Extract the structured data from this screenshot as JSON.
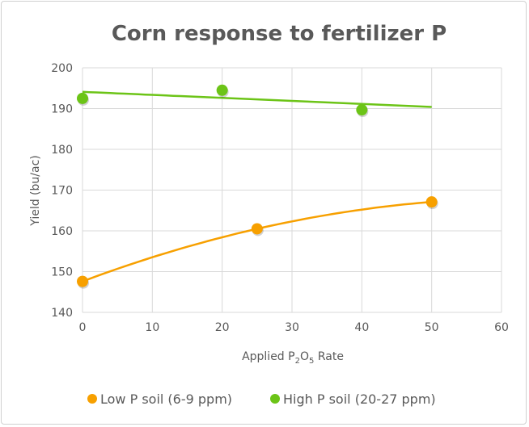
{
  "chart_data": {
    "type": "scatter",
    "title": "Corn response to fertilizer P",
    "xlabel": "Applied P2O5 Rate",
    "xlabel_parts": {
      "pre": "Applied P",
      "sub1": "2",
      "mid": "O",
      "sub2": "5",
      "post": " Rate"
    },
    "ylabel": "Yield (bu/ac)",
    "xlim": [
      0,
      60
    ],
    "ylim": [
      140,
      200
    ],
    "xticks": [
      "0",
      "10",
      "20",
      "30",
      "40",
      "50",
      "60"
    ],
    "yticks": [
      "140",
      "150",
      "160",
      "170",
      "180",
      "190",
      "200"
    ],
    "grid": true,
    "legend_position": "bottom",
    "series": [
      {
        "name": "Low P soil (6-9 ppm)",
        "color": "#F7A000",
        "x": [
          0,
          25,
          50
        ],
        "y": [
          147.6,
          160.5,
          167.1
        ],
        "trendline": {
          "type": "polynomial",
          "coef": [
            147.6,
            0.642,
            -0.00504
          ],
          "x_range": [
            0,
            50
          ]
        }
      },
      {
        "name": "High P soil (20-27 ppm)",
        "color": "#6CC417",
        "x": [
          0,
          20,
          40
        ],
        "y": [
          192.5,
          194.5,
          189.7
        ],
        "trendline": {
          "type": "linear",
          "coef": [
            194.1,
            -0.074
          ],
          "x_range": [
            0,
            50
          ]
        }
      }
    ]
  }
}
